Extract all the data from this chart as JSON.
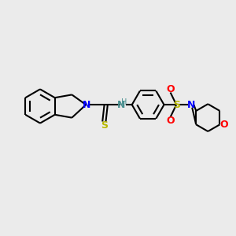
{
  "bg_color": "#ebebeb",
  "bond_color": "#000000",
  "N_color": "#0000ff",
  "NH_color": "#4a9090",
  "S_color": "#b8b800",
  "O_color": "#ff0000",
  "lw": 1.5,
  "figsize": [
    3.0,
    3.0
  ],
  "dpi": 100,
  "xlim": [
    0,
    10
  ],
  "ylim": [
    0,
    10
  ]
}
